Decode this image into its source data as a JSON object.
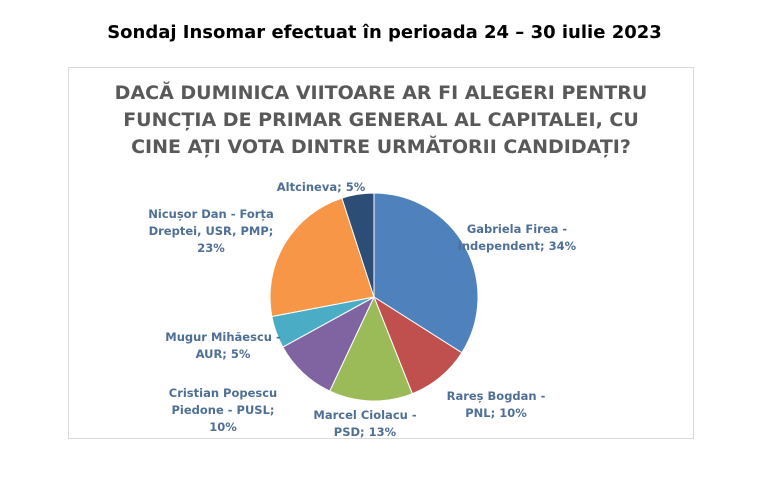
{
  "page": {
    "heading": "Sondaj Insomar efectuat în perioada 24 – 30 iulie 2023"
  },
  "chart_data": {
    "type": "pie",
    "title_lines": [
      "DACĂ DUMINICA VIITOARE AR FI ALEGERI PENTRU",
      "FUNCȚIA DE PRIMAR GENERAL AL CAPITALEI, CU",
      "CINE AȚI VOTA DINTRE URMĂTORII CANDIDAȚI?"
    ],
    "slices": [
      {
        "name": "Gabriela Firea - independent",
        "value": 34,
        "color": "#4f81bd",
        "label_lines": [
          "Gabriela Firea -",
          "independent; 34%"
        ]
      },
      {
        "name": "Rareș Bogdan - PNL",
        "value": 10,
        "color": "#c0504d",
        "label_lines": [
          "Rareș Bogdan -",
          "PNL;  10%"
        ]
      },
      {
        "name": "Marcel Ciolacu - PSD",
        "value": 13,
        "color": "#9bbb59",
        "label_lines": [
          "Marcel Ciolacu -",
          "PSD;  13%"
        ]
      },
      {
        "name": "Cristian Popescu Piedone - PUSL",
        "value": 10,
        "color": "#8064a2",
        "label_lines": [
          "Cristian Popescu",
          "Piedone - PUSL;",
          "10%"
        ]
      },
      {
        "name": "Mugur Mihăescu - AUR",
        "value": 5,
        "color": "#4bacc6",
        "label_lines": [
          "Mugur Mihăescu -",
          "AUR;  5%"
        ]
      },
      {
        "name": "Nicușor Dan - Forța Dreptei, USR, PMP",
        "value": 23,
        "color": "#f79646",
        "label_lines": [
          "Nicușor Dan - Forța",
          "Dreptei, USR, PMP;",
          "23%"
        ]
      },
      {
        "name": "Altcineva",
        "value": 5,
        "color": "#2c4d75",
        "label_lines": [
          "Altcineva; 5%"
        ]
      }
    ]
  }
}
